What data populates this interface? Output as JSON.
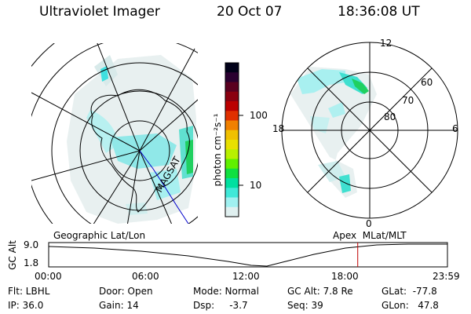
{
  "header": {
    "instrument": "Ultraviolet Imager",
    "date": "20 Oct 07",
    "time": "18:36:08 UT"
  },
  "colorbar": {
    "unit_label": "photon cm⁻²s⁻¹",
    "ticks": [
      "100",
      "10"
    ],
    "colors": [
      "#000018",
      "#2a0030",
      "#5a0020",
      "#8a0010",
      "#bb0000",
      "#e03000",
      "#f08000",
      "#f0c000",
      "#e8e000",
      "#b8f000",
      "#60f000",
      "#10e040",
      "#00e0a0",
      "#40e8d8",
      "#a0f0f0",
      "#e0f0f0"
    ]
  },
  "polar_map": {
    "mlt_labels": [
      "12",
      "18",
      "6",
      "0"
    ],
    "lat_labels": [
      "60",
      "70",
      "80"
    ]
  },
  "strip": {
    "y_axis_label": "GC Alt",
    "y_ticks": [
      "9.0",
      "1.8"
    ],
    "left_title": "Geographic Lat/Lon",
    "right_title": "Apex  MLat/MLT",
    "x_ticks": [
      "00:00",
      "06:00",
      "12:00",
      "18:00",
      "23:59"
    ],
    "marker_hour": 18.6
  },
  "info": {
    "flt": "Flt: LBHL",
    "ip": "IP: 36.0",
    "door": "Door: Open",
    "gain": "Gain: 14",
    "mode": "Mode: Normal",
    "dsp": "Dsp:     -3.7",
    "gcalt": "GC Alt: 7.8 Re",
    "seq": "Seq: 39",
    "glat": "GLat:  -77.8",
    "glon": "GLon:   47.8"
  },
  "colors": {
    "aurora_cyan": "#40e0e0",
    "aurora_green": "#20d060",
    "marker_red": "#c00000",
    "track_blue": "#0000cc"
  }
}
